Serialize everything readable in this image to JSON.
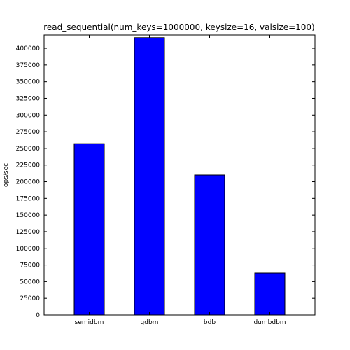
{
  "chart_data": {
    "type": "bar",
    "title": "read_sequential(num_keys=1000000, keysize=16, valsize=100)",
    "xlabel": "",
    "ylabel": "ops/sec",
    "categories": [
      "semidbm",
      "gdbm",
      "bdb",
      "dumbdbm"
    ],
    "values": [
      257000,
      416000,
      210000,
      63000
    ],
    "ylim": [
      0,
      420000
    ],
    "yticks": [
      0,
      25000,
      50000,
      75000,
      100000,
      125000,
      150000,
      175000,
      200000,
      225000,
      250000,
      275000,
      300000,
      325000,
      350000,
      375000,
      400000
    ],
    "bar_color": "#0000ff",
    "edge_color": "#000000",
    "grid": false,
    "legend": false
  }
}
